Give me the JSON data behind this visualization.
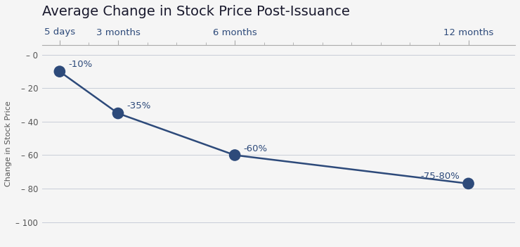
{
  "title": "Average Change in Stock Price Post-Issuance",
  "ylabel": "Change in Stock Price",
  "x_positions": [
    0,
    1,
    3,
    7
  ],
  "x_labels": [
    "5 days",
    "3 months",
    "6 months",
    "12 months"
  ],
  "x_tick_minor": [
    0,
    0.5,
    1,
    1.5,
    2,
    2.5,
    3,
    3.5,
    4,
    4.5,
    5,
    5.5,
    6,
    6.5,
    7
  ],
  "y_values": [
    -10,
    -35,
    -60,
    -77
  ],
  "point_labels": [
    "-10%",
    "-35%",
    "-60%",
    "-75-80%"
  ],
  "y_ticks": [
    0,
    -20,
    -40,
    -60,
    -80,
    -100
  ],
  "y_tick_labels": [
    "– 0",
    "– 20",
    "– 40",
    "– 60",
    "– 80",
    "– 100"
  ],
  "ylim": [
    -112,
    6
  ],
  "xlim": [
    -0.3,
    7.8
  ],
  "line_color": "#2d4a7a",
  "marker_color": "#2d4a7a",
  "label_color": "#2d4a7a",
  "title_color": "#1a1a2e",
  "axis_color": "#2d4a7a",
  "grid_color": "#c8cdd8",
  "bg_color": "#f5f5f5",
  "title_fontsize": 14,
  "label_fontsize": 9.5,
  "tick_fontsize": 8.5,
  "ylabel_fontsize": 8,
  "marker_size": 12,
  "line_width": 1.8
}
